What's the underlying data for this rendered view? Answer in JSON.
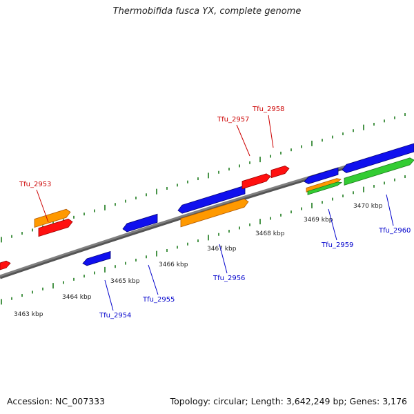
{
  "title": "Thermobifida fusca YX, complete genome",
  "footer": {
    "accession": "Accession: NC_007333",
    "summary": "Topology: circular; Length: 3,642,249 bp; Genes: 3,176"
  },
  "colors": {
    "backbone": "#808080",
    "tick": "#1a7a1a",
    "forward_label": "#cc0000",
    "reverse_label": "#0000cc",
    "red": "#ff1010",
    "orange": "#ff9900",
    "blue": "#1010ee",
    "green": "#33cc33"
  },
  "scale_labels": [
    "3463 kbp",
    "3464 kbp",
    "3465 kbp",
    "3466 kbp",
    "3467 kbp",
    "3468 kbp",
    "3469 kbp",
    "3470 kbp"
  ],
  "gene_labels": [
    {
      "text": "Tfu_2953",
      "strand": "forward"
    },
    {
      "text": "Tfu_2957",
      "strand": "forward"
    },
    {
      "text": "Tfu_2958",
      "strand": "forward"
    },
    {
      "text": "Tfu_2954",
      "strand": "reverse"
    },
    {
      "text": "Tfu_2955",
      "strand": "reverse"
    },
    {
      "text": "Tfu_2956",
      "strand": "reverse"
    },
    {
      "text": "Tfu_2959",
      "strand": "reverse"
    },
    {
      "text": "Tfu_2960",
      "strand": "reverse"
    }
  ],
  "features": [
    {
      "name": "gene-red-1",
      "color": "red"
    },
    {
      "name": "gene-red-2953",
      "color": "red"
    },
    {
      "name": "cds-orange-2953",
      "color": "orange"
    },
    {
      "name": "gene-blue-2954",
      "color": "blue"
    },
    {
      "name": "gene-blue-2955",
      "color": "blue"
    },
    {
      "name": "gene-blue-2956",
      "color": "blue"
    },
    {
      "name": "cds-orange-2956",
      "color": "orange"
    },
    {
      "name": "gene-red-2957",
      "color": "red"
    },
    {
      "name": "gene-red-2958",
      "color": "red"
    },
    {
      "name": "gene-blue-2959",
      "color": "blue"
    },
    {
      "name": "cds-orange-2959",
      "color": "orange"
    },
    {
      "name": "cds-green-2959",
      "color": "green"
    },
    {
      "name": "gene-blue-2960",
      "color": "blue"
    },
    {
      "name": "cds-green-2960",
      "color": "green"
    }
  ]
}
